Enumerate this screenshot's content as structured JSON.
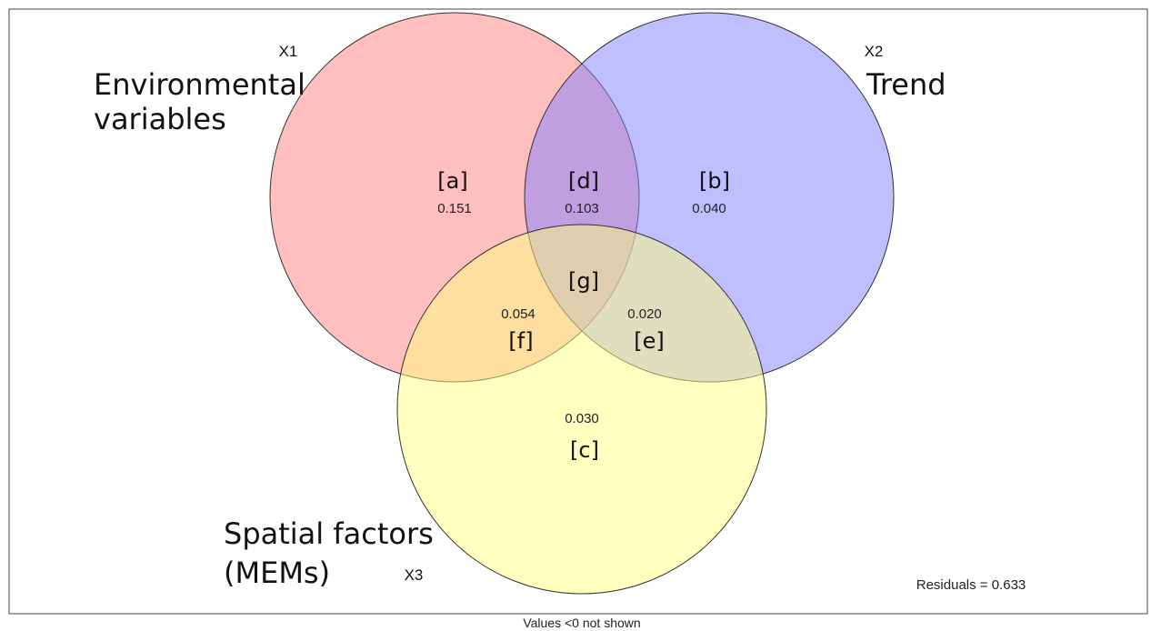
{
  "diagram": {
    "sets": [
      {
        "id": "X1",
        "name": "Environmental variables",
        "name_lines": [
          "Environmental",
          "variables"
        ],
        "color": "#ff8080"
      },
      {
        "id": "X2",
        "name": "Trend",
        "name_lines": [
          "Trend"
        ],
        "color": "#8080ff"
      },
      {
        "id": "X3",
        "name": "Spatial factors (MEMs)",
        "name_lines": [
          "Spatial factors",
          "(MEMs)"
        ],
        "color": "#ffff80"
      }
    ],
    "regions": [
      {
        "key": "a",
        "label": "[a]",
        "value": "0.151"
      },
      {
        "key": "b",
        "label": "[b]",
        "value": "0.040"
      },
      {
        "key": "c",
        "label": "[c]",
        "value": "0.030"
      },
      {
        "key": "d",
        "label": "[d]",
        "value": "0.103"
      },
      {
        "key": "e",
        "label": "[e]",
        "value": "0.020"
      },
      {
        "key": "f",
        "label": "[f]",
        "value": "0.054"
      },
      {
        "key": "g",
        "label": "[g]",
        "value": ""
      }
    ],
    "residuals": "Residuals = 0.633",
    "footnote": "Values <0 not shown"
  }
}
